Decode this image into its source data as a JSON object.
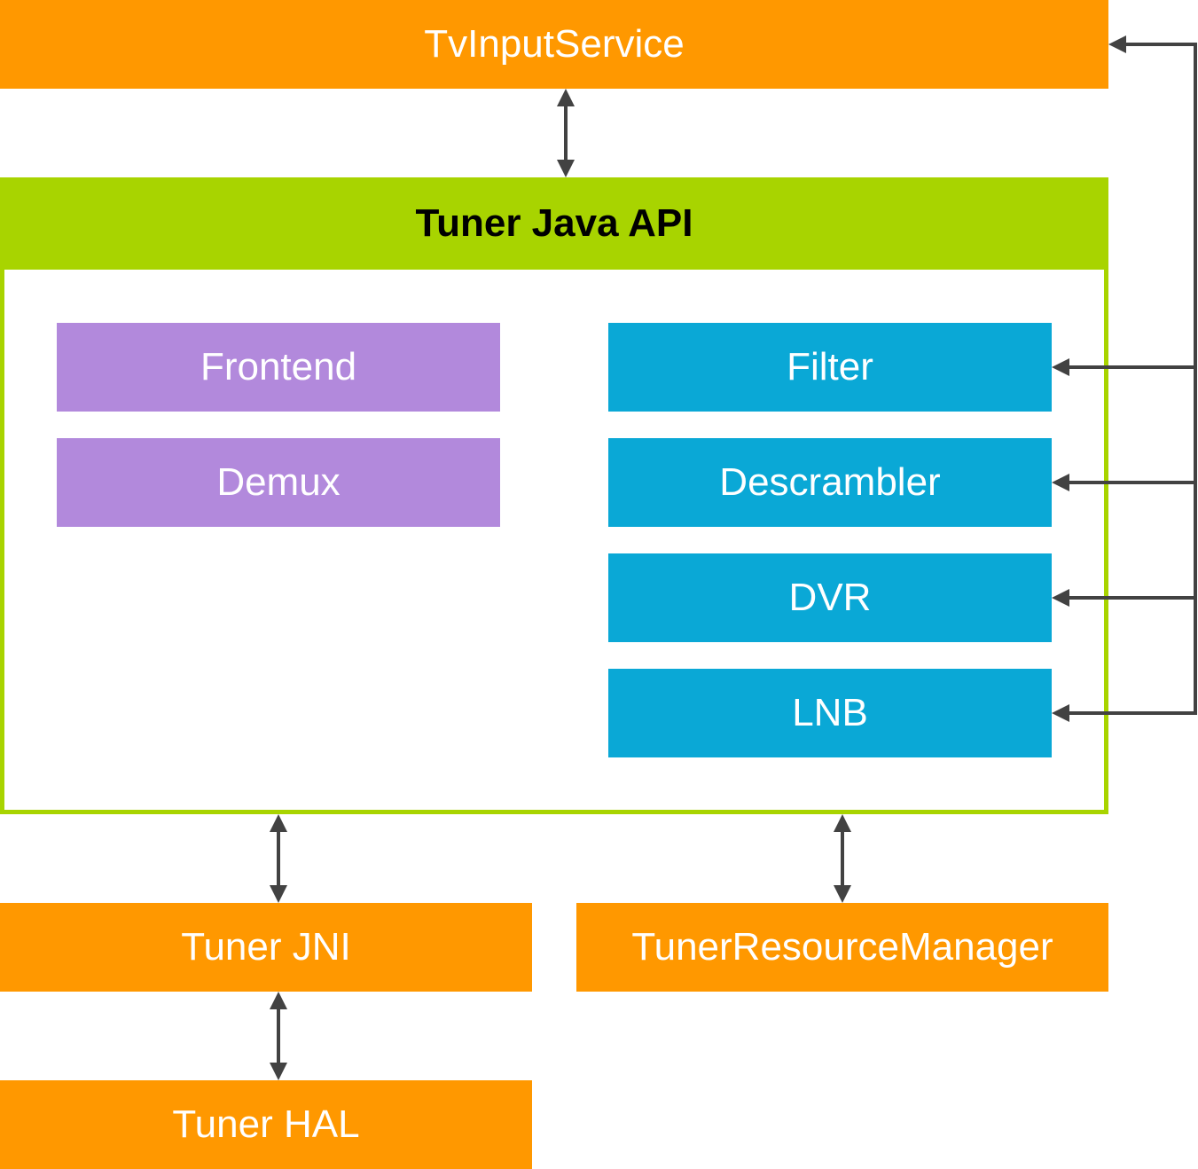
{
  "colors": {
    "service": "#FF9800",
    "api": "#A8D400",
    "core": "#B289DC",
    "component": "#0AA8D6",
    "arrow": "#424242"
  },
  "nodes": {
    "tv_input_service": "TvInputService",
    "tuner_java_api": "Tuner Java API",
    "frontend": "Frontend",
    "demux": "Demux",
    "filter": "Filter",
    "descrambler": "Descrambler",
    "dvr": "DVR",
    "lnb": "LNB",
    "tuner_jni": "Tuner JNI",
    "tuner_resource_manager": "TunerResourceManager",
    "tuner_hal": "Tuner HAL"
  }
}
